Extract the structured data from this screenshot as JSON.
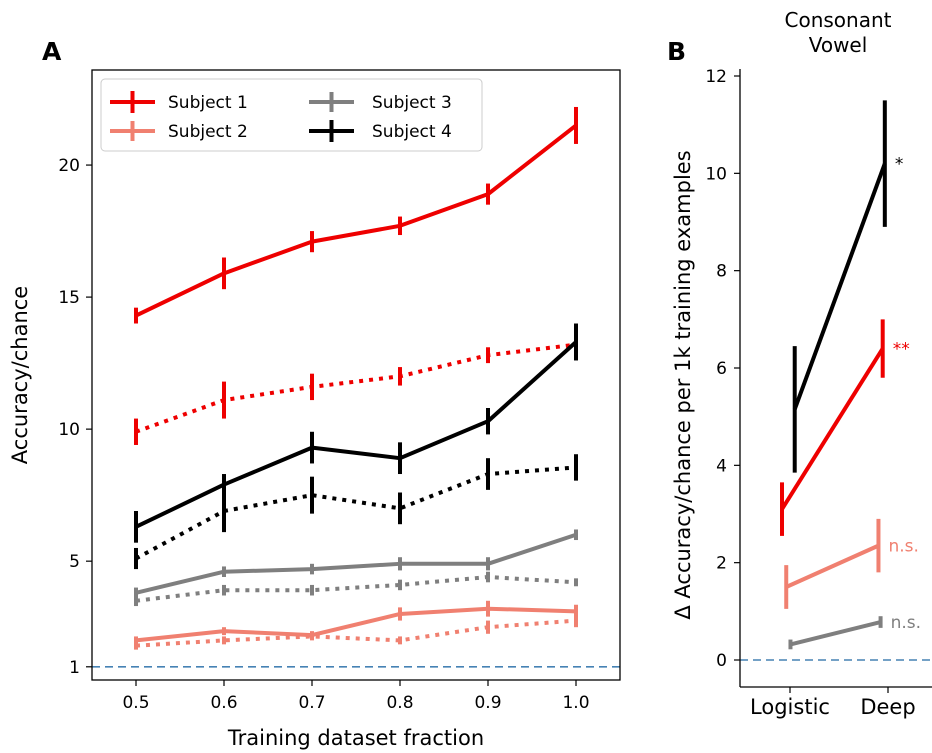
{
  "colors": {
    "subject1": "#ee0000",
    "subject2": "#f08070",
    "subject3": "#7f7f7f",
    "subject4": "#000000",
    "chance_line": "#4682b4"
  },
  "header": {
    "line1": "Consonant",
    "line2": "Vowel"
  },
  "chart_data": [
    {
      "panel": "A",
      "type": "line",
      "xlabel": "Training dataset fraction",
      "ylabel": "Accuracy/chance",
      "xlim": [
        0.45,
        1.05
      ],
      "ylim": [
        0.5,
        23.6
      ],
      "xticks": [
        "0.5",
        "0.6",
        "0.7",
        "0.8",
        "0.9",
        "1.0"
      ],
      "yticks": [
        "1",
        "5",
        "10",
        "15",
        "20"
      ],
      "reference_line": 1,
      "legend": {
        "placement": "top-left",
        "entries": [
          "Subject 1",
          "Subject 2",
          "Subject 3",
          "Subject 4"
        ]
      },
      "x": [
        0.5,
        0.6,
        0.7,
        0.8,
        0.9,
        1.0
      ],
      "series": [
        {
          "name": "Subject 1",
          "color_key": "subject1",
          "style": "solid",
          "values": [
            14.3,
            15.9,
            17.1,
            17.7,
            18.9,
            21.5
          ],
          "errors": [
            0.3,
            0.6,
            0.4,
            0.35,
            0.4,
            0.7
          ]
        },
        {
          "color_key": "subject1",
          "style": "dotted",
          "values": [
            9.9,
            11.1,
            11.6,
            12.0,
            12.8,
            13.2
          ],
          "errors": [
            0.5,
            0.7,
            0.5,
            0.35,
            0.3,
            0.4
          ]
        },
        {
          "name": "Subject 4",
          "color_key": "subject4",
          "style": "solid",
          "values": [
            6.3,
            7.9,
            9.3,
            8.9,
            10.3,
            13.3
          ],
          "errors": [
            0.6,
            0.4,
            0.6,
            0.6,
            0.5,
            0.7
          ]
        },
        {
          "color_key": "subject4",
          "style": "dotted",
          "values": [
            5.1,
            6.9,
            7.5,
            7.0,
            8.3,
            8.55
          ],
          "errors": [
            0.4,
            0.8,
            0.7,
            0.6,
            0.6,
            0.5
          ]
        },
        {
          "name": "Subject 3",
          "color_key": "subject3",
          "style": "solid",
          "values": [
            3.8,
            4.6,
            4.7,
            4.9,
            4.9,
            6.0
          ],
          "errors": [
            0.2,
            0.2,
            0.2,
            0.25,
            0.25,
            0.2
          ]
        },
        {
          "color_key": "subject3",
          "style": "dotted",
          "values": [
            3.5,
            3.9,
            3.9,
            4.1,
            4.4,
            4.2
          ],
          "errors": [
            0.2,
            0.2,
            0.2,
            0.2,
            0.2,
            0.15
          ]
        },
        {
          "name": "Subject 2",
          "color_key": "subject2",
          "style": "solid",
          "values": [
            2.0,
            2.35,
            2.2,
            3.0,
            3.2,
            3.1
          ],
          "errors": [
            0.15,
            0.15,
            0.15,
            0.25,
            0.3,
            0.25
          ]
        },
        {
          "color_key": "subject2",
          "style": "dotted",
          "values": [
            1.8,
            2.0,
            2.15,
            2.0,
            2.5,
            2.75
          ],
          "errors": [
            0.15,
            0.15,
            0.15,
            0.15,
            0.25,
            0.25
          ]
        }
      ]
    },
    {
      "panel": "B",
      "type": "line",
      "xlabel": "",
      "ylabel": "Δ Accuracy/chance per 1k training examples",
      "categories": [
        "Logistic",
        "Deep"
      ],
      "ylim": [
        -0.7,
        12.1
      ],
      "yticks": [
        "0",
        "2",
        "4",
        "6",
        "8",
        "10",
        "12"
      ],
      "reference_line": 0,
      "series": [
        {
          "color_key": "subject4",
          "x": [
            0.12,
            0.97
          ],
          "values": [
            5.15,
            10.2
          ],
          "errors": [
            1.3,
            1.3
          ],
          "annotation": "*"
        },
        {
          "color_key": "subject1",
          "x": [
            0.0,
            0.95
          ],
          "values": [
            3.1,
            6.4
          ],
          "errors": [
            0.55,
            0.6
          ],
          "annotation": "**"
        },
        {
          "color_key": "subject2",
          "x": [
            0.04,
            0.91
          ],
          "values": [
            1.5,
            2.35
          ],
          "errors": [
            0.45,
            0.55
          ],
          "annotation": "n.s."
        },
        {
          "color_key": "subject3",
          "x": [
            0.08,
            0.93
          ],
          "values": [
            0.32,
            0.78
          ],
          "errors": [
            0.1,
            0.12
          ],
          "annotation": "n.s."
        }
      ]
    }
  ]
}
